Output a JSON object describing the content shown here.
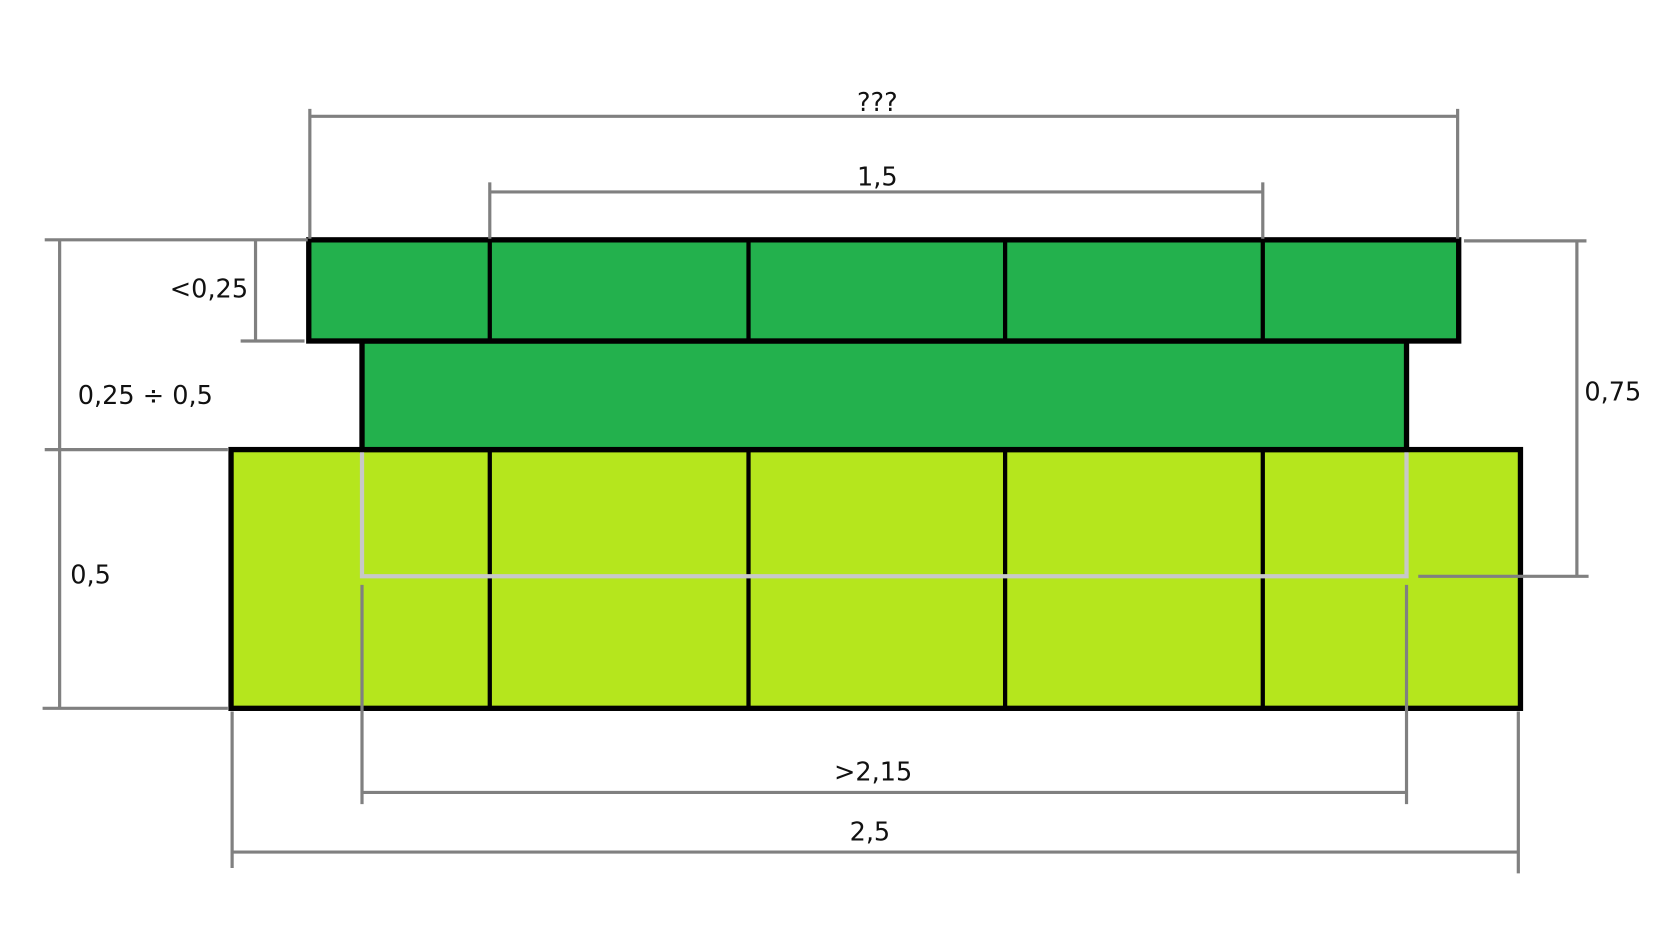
{
  "colors": {
    "top_row": "#23b14d",
    "middle_layer": "#23b14d",
    "bottom_row": "#b5e61d",
    "dimension_lines": "#808080",
    "overlay_outline": "#c8c8c8",
    "outline": "#000000"
  },
  "dimensions": {
    "top_total_width": "???",
    "top_inner_width": "1,5",
    "top_row_height": "<0,25",
    "middle_layer_height": "0,25 ÷ 0,5",
    "bottom_row_height": "0,5",
    "right_height": "0,75",
    "middle_layer_width": ">2,15",
    "bottom_total_width": "2,5"
  }
}
